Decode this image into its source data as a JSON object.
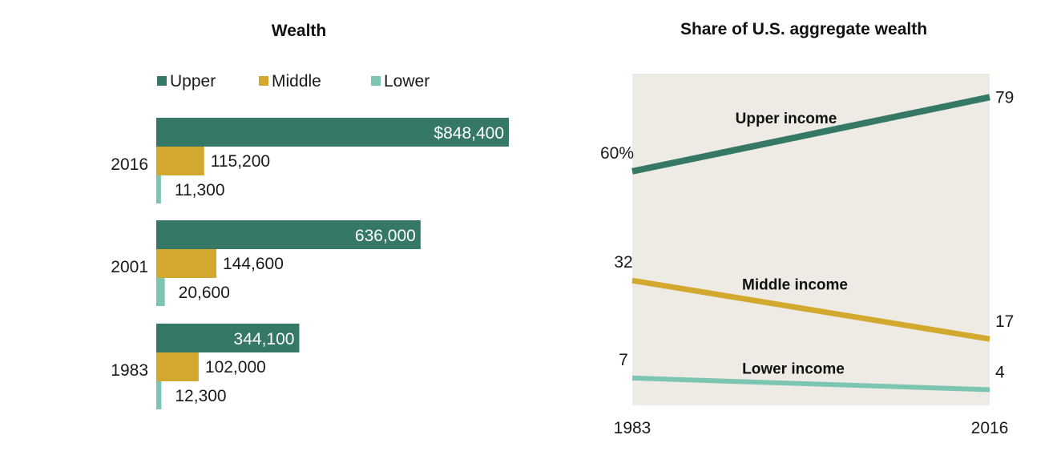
{
  "colors": {
    "upper": "#367866",
    "middle": "#d3a82f",
    "lower": "#7cc5b3",
    "panel_bg": "#eeebe4"
  },
  "chart_data": [
    {
      "type": "bar",
      "title": "Wealth",
      "legend": [
        "Upper",
        "Middle",
        "Lower"
      ],
      "legend_placement": "top",
      "orientation": "horizontal",
      "categories": [
        "2016",
        "2001",
        "1983"
      ],
      "series": [
        {
          "name": "Upper",
          "values": [
            848400,
            636000,
            344100
          ],
          "labels": [
            "$848,400",
            "636,000",
            "344,100"
          ]
        },
        {
          "name": "Middle",
          "values": [
            115200,
            144600,
            102000
          ],
          "labels": [
            "115,200",
            "144,600",
            "102,000"
          ]
        },
        {
          "name": "Lower",
          "values": [
            11300,
            20600,
            12300
          ],
          "labels": [
            "11,300",
            "20,600",
            "12,300"
          ]
        }
      ],
      "xlim": [
        0,
        848400
      ]
    },
    {
      "type": "line",
      "title": "Share of U.S. aggregate wealth",
      "x": [
        "1983",
        "2016"
      ],
      "ylim": [
        0,
        84
      ],
      "series": [
        {
          "name": "Upper income",
          "values": [
            60,
            79
          ],
          "labels": [
            "60%",
            "79"
          ]
        },
        {
          "name": "Middle income",
          "values": [
            32,
            17
          ],
          "labels": [
            "32",
            "17"
          ]
        },
        {
          "name": "Lower income",
          "values": [
            7,
            4
          ],
          "labels": [
            "7",
            "4"
          ]
        }
      ]
    }
  ]
}
